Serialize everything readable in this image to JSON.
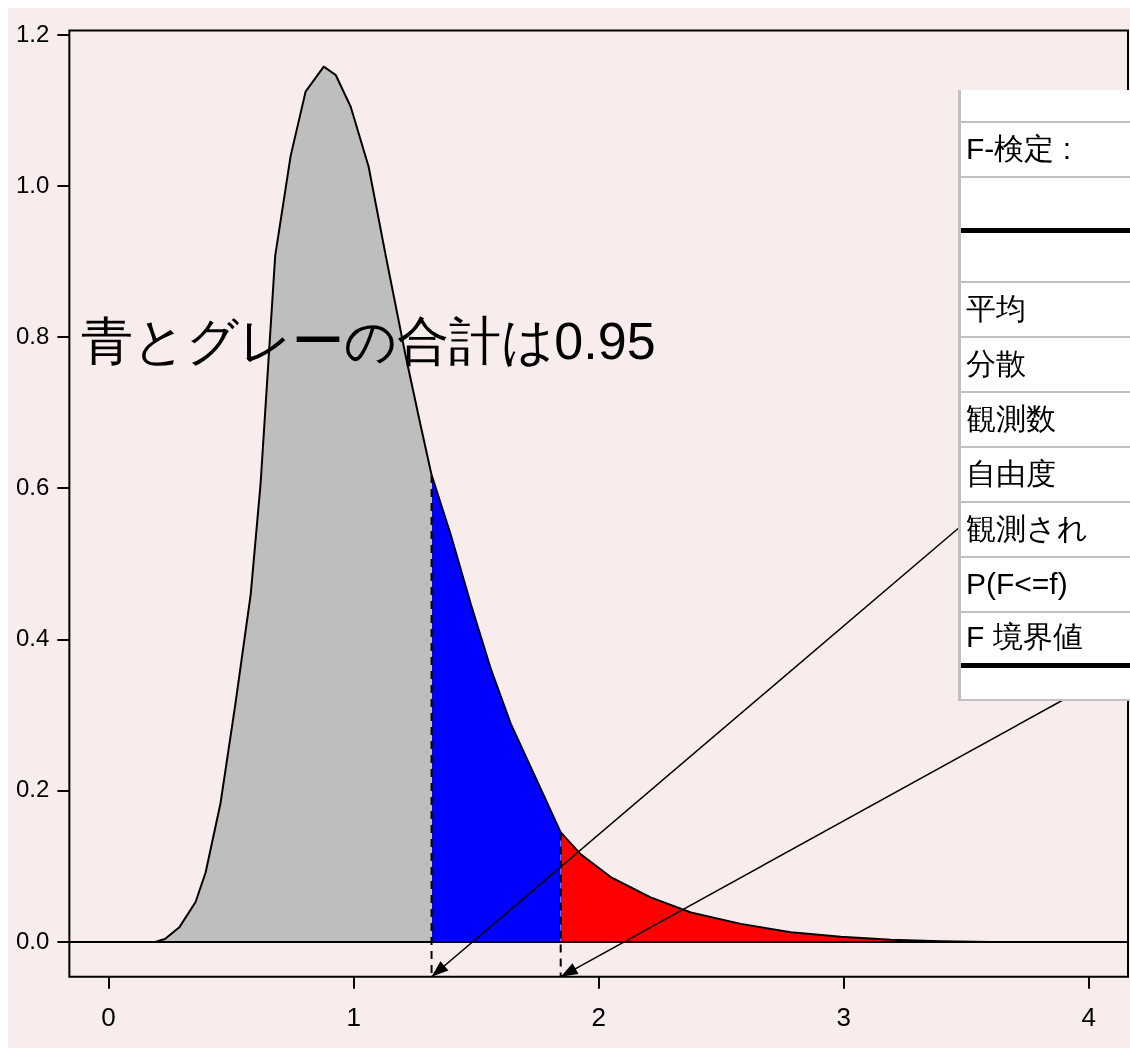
{
  "chart_data": {
    "type": "area",
    "series": [
      {
        "color": "#bebebe",
        "x": [
          0,
          0.19,
          0.23,
          0.29,
          0.355,
          0.396,
          0.457,
          0.518,
          0.58,
          0.62,
          0.68,
          0.743,
          0.804,
          0.878,
          0.927,
          0.988,
          1.061,
          1.131,
          1.212,
          1.273,
          1.318
        ],
        "values": [
          0,
          0,
          0.004,
          0.02,
          0.053,
          0.092,
          0.184,
          0.316,
          0.46,
          0.605,
          0.908,
          1.04,
          1.125,
          1.158,
          1.147,
          1.105,
          1.026,
          0.908,
          0.776,
          0.684,
          0.618
        ]
      },
      {
        "color": "#0000ff",
        "x": [
          1.318,
          1.396,
          1.478,
          1.559,
          1.641,
          1.743,
          1.845
        ],
        "values": [
          0.618,
          0.539,
          0.447,
          0.362,
          0.289,
          0.217,
          0.145
        ]
      },
      {
        "color": "#ff0000",
        "x": [
          1.845,
          1.927,
          2.049,
          2.212,
          2.376,
          2.58,
          2.784,
          2.988,
          3.192,
          3.396,
          3.6,
          4.008
        ],
        "values": [
          0.145,
          0.116,
          0.086,
          0.059,
          0.039,
          0.024,
          0.013,
          0.007,
          0.003,
          0.001,
          0,
          0
        ]
      }
    ],
    "xlim": [
      -0.16,
      4.16
    ],
    "ylim": [
      -0.046,
      1.206
    ],
    "xticks": [
      0,
      1,
      2,
      3,
      4
    ],
    "yticks": [
      {
        "value": 0,
        "label": "0.0"
      },
      {
        "value": 0.2,
        "label": "0.2"
      },
      {
        "value": 0.4,
        "label": "0.4"
      },
      {
        "value": 0.6,
        "label": "0.6"
      },
      {
        "value": 0.8,
        "label": "0.8"
      },
      {
        "value": 1,
        "label": "1.0"
      },
      {
        "value": 1.2,
        "label": "1.2"
      }
    ],
    "grid": false,
    "legend": false,
    "ref_lines": [
      {
        "axis": "y",
        "value": 0,
        "color": "#000000",
        "line_style": "solid"
      },
      {
        "axis": "x",
        "value": 1.318,
        "color": "#000000",
        "line_style": "dashed"
      },
      {
        "axis": "x",
        "value": 1.845,
        "color": "#000000",
        "line_style": "dashed"
      }
    ],
    "annotations": [
      "青とグレーの合計は0.95",
      "F-検定 :",
      "平均",
      "分散",
      "観測数",
      "自由度",
      "観測され",
      "P(F<=f)",
      "F 境界値"
    ]
  }
}
